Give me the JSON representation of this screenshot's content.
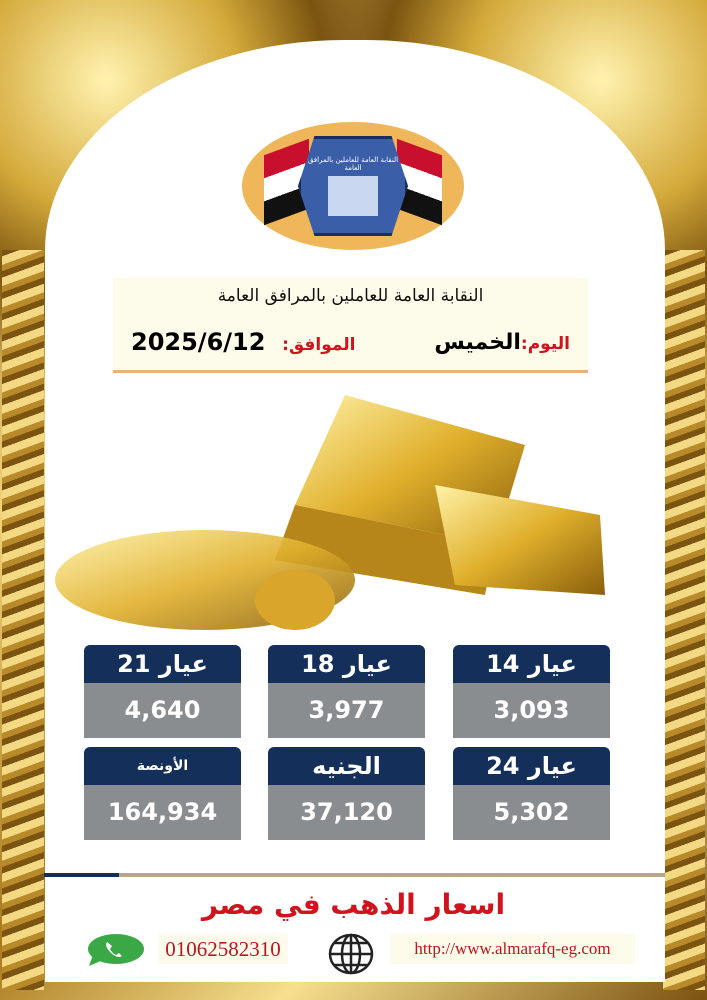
{
  "logo": {
    "text": "النقابة العامة للعاملين بالمرافق العامة"
  },
  "header": {
    "title": "النقابة العامة للعاملين بالمرافق العامة",
    "day_label": "اليوم:",
    "day": "الخميس",
    "date_label": "الموافق:",
    "date": "2025/6/12"
  },
  "prices": [
    {
      "label": "عيار 21",
      "value": "4,640"
    },
    {
      "label": "عيار 18",
      "value": "3,977"
    },
    {
      "label": "عيار 14",
      "value": "3,093"
    },
    {
      "label": "الأونصة",
      "value": "164,934"
    },
    {
      "label": "الجنيه",
      "value": "37,120"
    },
    {
      "label": "عيار 24",
      "value": "5,302"
    }
  ],
  "footer": {
    "slogan": "اسعار الذهب في مصر",
    "phone": "01062582310",
    "website": "http://www.almarafq-eg.com"
  },
  "colors": {
    "header_bg": "#14305a",
    "value_bg": "#8a8d90",
    "accent_red": "#d0141e",
    "gold": "#d4a93a"
  },
  "icons": {
    "phone": "whatsapp-icon",
    "web": "globe-icon"
  }
}
